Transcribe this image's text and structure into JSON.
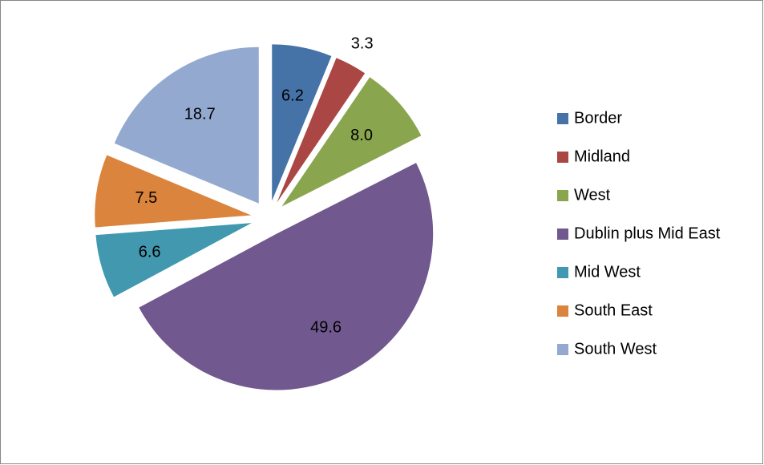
{
  "chart_data": {
    "type": "pie",
    "categories": [
      "Border",
      "Midland",
      "West",
      "Dublin plus Mid East",
      "Mid West",
      "South East",
      "South West"
    ],
    "values": [
      6.2,
      3.3,
      8.0,
      49.6,
      6.6,
      7.5,
      18.7
    ],
    "value_labels": [
      "6.2",
      "3.3",
      "8.0",
      "49.6",
      "6.6",
      "7.5",
      "18.7"
    ],
    "colors": [
      "#4572a7",
      "#aa4643",
      "#89a54e",
      "#71588f",
      "#4198af",
      "#db843d",
      "#93a9cf"
    ],
    "legend": "right"
  }
}
